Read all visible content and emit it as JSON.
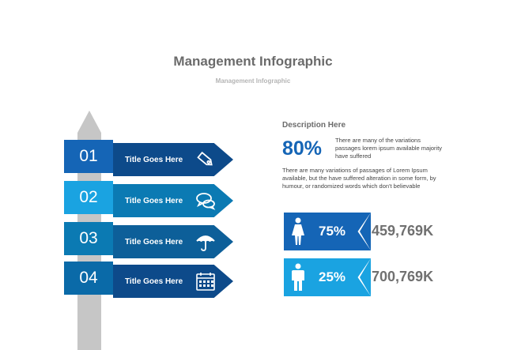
{
  "header": {
    "title": "Management Infographic",
    "subtitle": "Management Infographic"
  },
  "colors": {
    "dark_blue": "#1565b6",
    "navy": "#0d4a8a",
    "light_blue": "#1aa3e1",
    "teal": "#0b7ab3",
    "grey_pole": "#c6c6c6"
  },
  "signs": [
    {
      "number": "01",
      "label": "Title Goes Here",
      "icon": "price-tag-icon"
    },
    {
      "number": "02",
      "label": "Title Goes Here",
      "icon": "speech-bubbles-icon"
    },
    {
      "number": "03",
      "label": "Title Goes Here",
      "icon": "umbrella-icon"
    },
    {
      "number": "04",
      "label": "Title Goes Here",
      "icon": "calendar-icon"
    }
  ],
  "description": {
    "heading": "Description Here",
    "percent": "80%",
    "short_text": "There are many of the variations passages lorem ipsum available majority have suffered",
    "paragraph": "There are many variations of passages  of Lorem Ipsum available, but the have suffered alteration in some  form, by humour, or randomized words  which  don't believable"
  },
  "stats": [
    {
      "icon": "female-icon",
      "percent": "75%",
      "value": "459,769K"
    },
    {
      "icon": "male-icon",
      "percent": "25%",
      "value": "700,769K"
    }
  ]
}
